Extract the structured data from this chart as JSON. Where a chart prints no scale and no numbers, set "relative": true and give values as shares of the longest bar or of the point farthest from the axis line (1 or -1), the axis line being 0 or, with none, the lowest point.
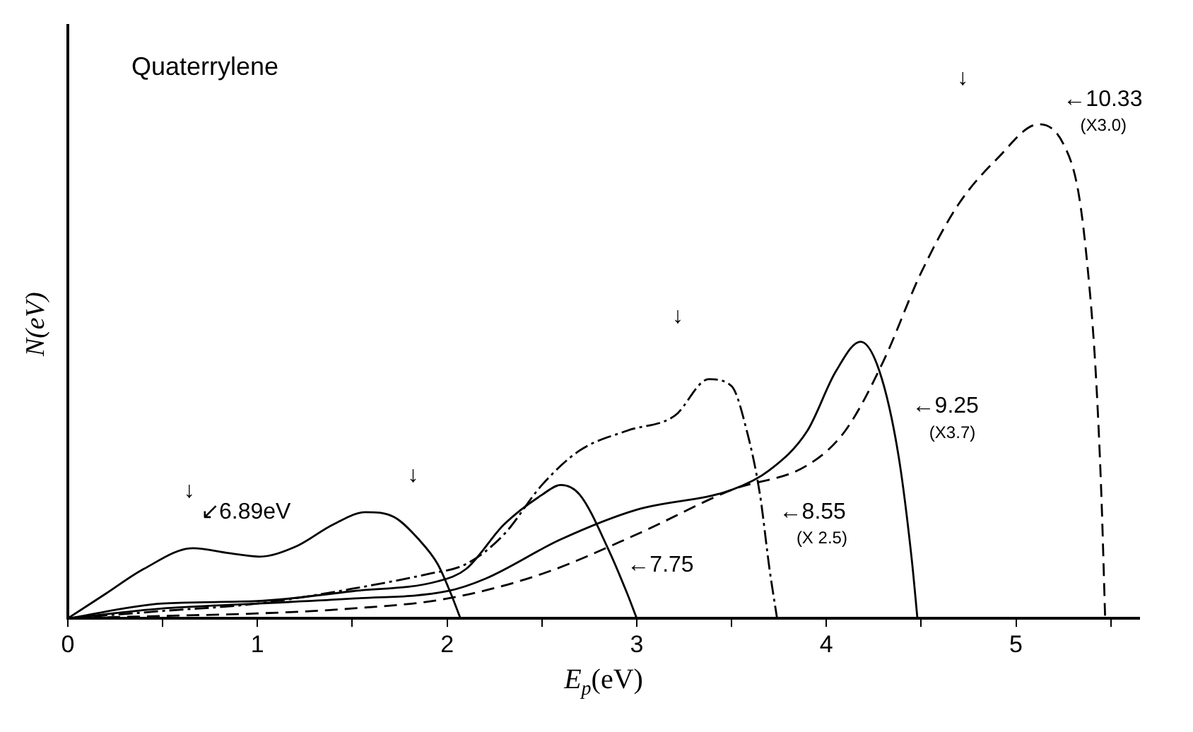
{
  "chart_data": {
    "type": "line",
    "title": "Quaterrylene",
    "xlabel": "E$_{p}$(eV)",
    "ylabel": "N(eV)",
    "relative": true,
    "xlim": [
      0,
      5.65
    ],
    "xticks": [
      0,
      {
        "value": 0.5,
        "label": null
      },
      1,
      {
        "value": 1.5,
        "label": null
      },
      2,
      {
        "value": 2.5,
        "label": null
      },
      3,
      {
        "value": 3.5,
        "label": null
      },
      4,
      {
        "value": 4.5,
        "label": null
      },
      5,
      {
        "value": 5.5,
        "label": null
      }
    ],
    "grid": false,
    "legend": false,
    "marker": "none",
    "series": [
      {
        "color": "#000000",
        "line_style": "solid",
        "x": [
          0,
          0.2,
          0.4,
          0.66,
          0.85,
          1.01,
          1.2,
          1.4,
          1.57,
          1.72,
          1.85,
          1.95,
          2.02,
          2.07
        ],
        "values": [
          0,
          0.05,
          0.1,
          0.142,
          0.132,
          0.125,
          0.145,
          0.19,
          0.215,
          0.205,
          0.16,
          0.11,
          0.05,
          0
        ]
      },
      {
        "color": "#000000",
        "line_style": "solid",
        "x": [
          0,
          0.5,
          1,
          1.5,
          1.95,
          2.1,
          2.3,
          2.5,
          2.6,
          2.7,
          2.85,
          2.95,
          3.0
        ],
        "values": [
          0,
          0.03,
          0.035,
          0.055,
          0.075,
          0.1,
          0.19,
          0.25,
          0.27,
          0.25,
          0.14,
          0.05,
          0
        ]
      },
      {
        "color": "#000000",
        "line_style": "dotted",
        "x": [
          0,
          0.5,
          1,
          1.5,
          1.9,
          2.1,
          2.3,
          2.5,
          2.7,
          2.95,
          3.2,
          3.38,
          3.5,
          3.58,
          3.65,
          3.7,
          3.74
        ],
        "values": [
          0,
          0.015,
          0.03,
          0.06,
          0.09,
          0.11,
          0.17,
          0.27,
          0.34,
          0.38,
          0.41,
          0.484,
          0.47,
          0.38,
          0.25,
          0.1,
          0
        ]
      },
      {
        "color": "#000000",
        "line_style": "solid",
        "x": [
          0,
          0.5,
          1,
          1.5,
          2.0,
          2.2,
          2.6,
          3.0,
          3.5,
          3.7,
          3.9,
          4.05,
          4.18,
          4.28,
          4.38,
          4.45,
          4.48
        ],
        "values": [
          0,
          0.02,
          0.03,
          0.04,
          0.055,
          0.08,
          0.16,
          0.22,
          0.26,
          0.3,
          0.38,
          0.5,
          0.56,
          0.5,
          0.33,
          0.12,
          0
        ]
      },
      {
        "color": "#000000",
        "line_style": "dashed",
        "x": [
          0,
          0.5,
          1,
          1.5,
          2.0,
          2.5,
          3.0,
          3.5,
          3.9,
          4.1,
          4.3,
          4.5,
          4.7,
          4.9,
          5.12,
          5.25,
          5.33,
          5.38,
          5.42,
          5.45,
          5.47
        ],
        "values": [
          0,
          0.005,
          0.01,
          0.02,
          0.04,
          0.09,
          0.17,
          0.26,
          0.31,
          0.38,
          0.52,
          0.7,
          0.84,
          0.93,
          1.0,
          0.96,
          0.86,
          0.7,
          0.5,
          0.25,
          0
        ]
      }
    ],
    "annotations": [
      "↓",
      "↓",
      "↓",
      "↓",
      "↙6.89eV",
      "←7.75",
      "←8.55",
      "(X 2.5)",
      "←9.25",
      "(X3.7)",
      "←10.33",
      "(X3.0)"
    ]
  }
}
